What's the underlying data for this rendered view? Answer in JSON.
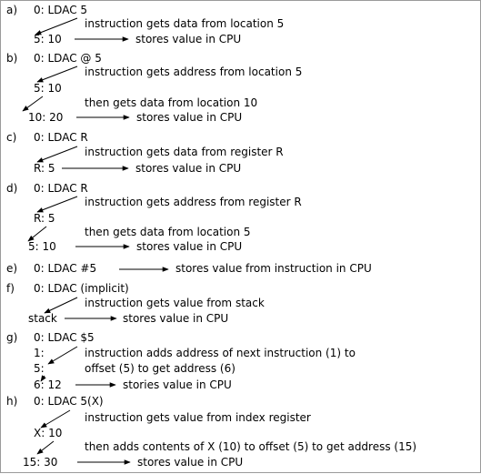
{
  "sections": [
    {
      "label": "a)",
      "lines": [
        "0:  LDAC 5",
        "instruction gets data from location 5",
        "5:  10",
        "stores value in CPU"
      ]
    },
    {
      "label": "b)",
      "lines": [
        "0:  LDAC @ 5",
        "instruction gets address from location 5",
        "5:  10",
        "then gets data from location 10",
        "10:  20",
        "stores value in CPU"
      ]
    },
    {
      "label": "c)",
      "lines": [
        "0:  LDAC R",
        "instruction gets data from register R",
        "R:  5",
        "stores value in CPU"
      ]
    },
    {
      "label": "d)",
      "lines": [
        "0:  LDAC R",
        "instruction gets address from register R",
        "R:  5",
        "then gets data from location 5",
        "5:   10",
        "stores value in CPU"
      ]
    },
    {
      "label": "e)",
      "lines": [
        "0:  LDAC #5",
        "stores value from instruction in CPU"
      ]
    },
    {
      "label": "f)",
      "lines": [
        "0:  LDAC (implicit)",
        "instruction gets value from stack",
        "stack",
        "stores value in CPU"
      ]
    },
    {
      "label": "g)",
      "lines": [
        "0:  LDAC $5",
        "1:",
        "instruction adds address of next instruction (1) to",
        "5:",
        "offset (5) to get address (6)",
        "6:  12",
        "stories value in CPU"
      ]
    },
    {
      "label": "h)",
      "lines": [
        "0:  LDAC 5(X)",
        "instruction gets value from index register",
        "X:  10",
        "then adds contents of X (10) to offset (5) to get address (15)",
        "15:  30",
        "stores value in CPU"
      ]
    }
  ]
}
